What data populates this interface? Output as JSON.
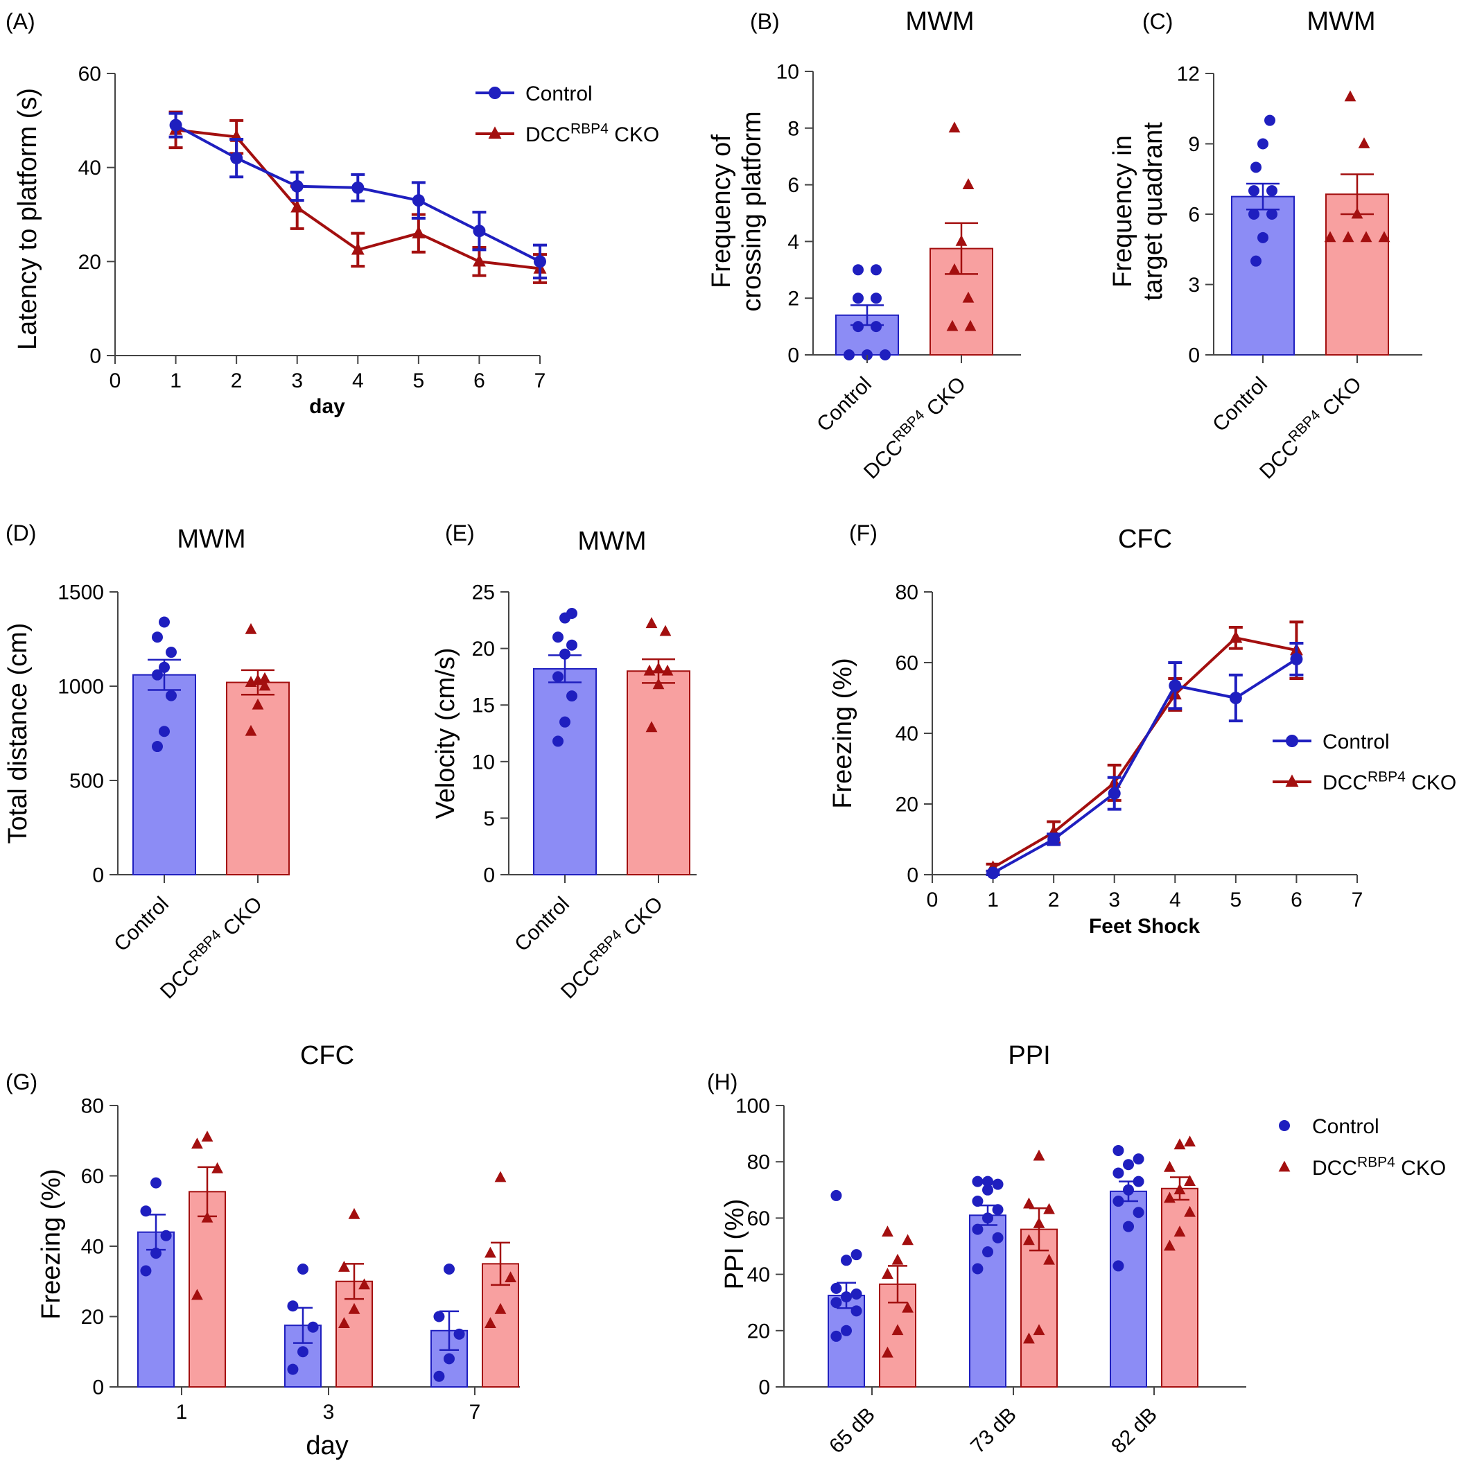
{
  "colors": {
    "control": "#1f1fbf",
    "cko": "#a30f0f",
    "control_fill": "#8c8cf5",
    "cko_fill": "#f8a0a0"
  },
  "legend": {
    "control": "Control",
    "cko_base": "DCC",
    "cko_sup": "RBP4",
    "cko_suffix": " CKO"
  },
  "chart_data": [
    {
      "id": "A",
      "panel_label": "(A)",
      "type": "line",
      "title": "",
      "xlabel": "day",
      "ylabel": "Latency to platform (s)",
      "xlim": [
        0,
        7
      ],
      "ylim": [
        0,
        60
      ],
      "x_ticks": [
        "0",
        "1",
        "2",
        "3",
        "4",
        "5",
        "6",
        "7"
      ],
      "y_ticks": [
        "0",
        "20",
        "40",
        "60"
      ],
      "legend_position": "top-right",
      "series": [
        {
          "name": "Control",
          "x": [
            1,
            2,
            3,
            4,
            5,
            6,
            7
          ],
          "y": [
            49,
            42,
            36,
            35.7,
            33,
            26.5,
            20
          ],
          "err": [
            2.5,
            4,
            3,
            2.8,
            3.8,
            4,
            3.5
          ]
        },
        {
          "name": "DCC RBP4 CKO",
          "x": [
            1,
            2,
            3,
            4,
            5,
            6,
            7
          ],
          "y": [
            48,
            46.5,
            31.5,
            22.5,
            26,
            20,
            18.5
          ],
          "err": [
            3.8,
            3.5,
            4.5,
            3.5,
            4,
            3,
            3
          ]
        }
      ]
    },
    {
      "id": "B",
      "panel_label": "(B)",
      "type": "bar",
      "title": "MWM",
      "ylabel_lines": [
        "Frequency of",
        "crossing platform"
      ],
      "ylim": [
        0,
        10
      ],
      "y_ticks": [
        "0",
        "2",
        "4",
        "6",
        "8",
        "10"
      ],
      "categories": [
        "Control",
        "DCC RBP4 CKO"
      ],
      "series": [
        {
          "name": "Control",
          "mean": 1.4,
          "sem": 0.35,
          "points": [
            0,
            0,
            0,
            1,
            1,
            2,
            2,
            3,
            3
          ]
        },
        {
          "name": "DCC RBP4 CKO",
          "mean": 3.75,
          "sem": 0.9,
          "points": [
            1,
            1,
            2,
            3,
            4,
            6,
            8
          ]
        }
      ]
    },
    {
      "id": "C",
      "panel_label": "(C)",
      "type": "bar",
      "title": "MWM",
      "ylabel_lines": [
        "Frequency in",
        "target quadrant"
      ],
      "ylim": [
        0,
        12
      ],
      "y_ticks": [
        "0",
        "3",
        "6",
        "9",
        "12"
      ],
      "categories": [
        "Control",
        "DCC RBP4 CKO"
      ],
      "series": [
        {
          "name": "Control",
          "mean": 6.75,
          "sem": 0.55,
          "points": [
            4,
            5,
            6,
            6,
            7,
            7,
            8,
            9,
            10
          ]
        },
        {
          "name": "DCC RBP4 CKO",
          "mean": 6.85,
          "sem": 0.85,
          "points": [
            5,
            5,
            5,
            5,
            6,
            9,
            11
          ]
        }
      ]
    },
    {
      "id": "D",
      "panel_label": "(D)",
      "type": "bar",
      "title": "MWM",
      "ylabel_lines": [
        "Total distance (cm)"
      ],
      "ylim": [
        0,
        1500
      ],
      "y_ticks": [
        "0",
        "500",
        "1000",
        "1500"
      ],
      "categories": [
        "Control",
        "DCC RBP4 CKO"
      ],
      "series": [
        {
          "name": "Control",
          "mean": 1060,
          "sem": 80,
          "points": [
            680,
            760,
            950,
            1060,
            1100,
            1180,
            1260,
            1340
          ]
        },
        {
          "name": "DCC RBP4 CKO",
          "mean": 1020,
          "sem": 65,
          "points": [
            760,
            900,
            1000,
            1020,
            1030,
            1040,
            1300
          ]
        }
      ]
    },
    {
      "id": "E",
      "panel_label": "(E)",
      "type": "bar",
      "title": "MWM",
      "ylabel_lines": [
        "Velocity (cm/s)"
      ],
      "ylim": [
        0,
        25
      ],
      "y_ticks": [
        "0",
        "5",
        "10",
        "15",
        "20",
        "25"
      ],
      "categories": [
        "Control",
        "DCC RBP4 CKO"
      ],
      "series": [
        {
          "name": "Control",
          "mean": 18.2,
          "sem": 1.2,
          "points": [
            11.8,
            13.5,
            15.8,
            17.5,
            19.5,
            20.3,
            21,
            22.7,
            23.1
          ]
        },
        {
          "name": "DCC RBP4 CKO",
          "mean": 18,
          "sem": 1.05,
          "points": [
            13,
            16.8,
            18,
            18,
            18.2,
            21.5,
            22.2
          ]
        }
      ]
    },
    {
      "id": "F",
      "panel_label": "(F)",
      "type": "line",
      "title": "CFC",
      "xlabel": "Feet Shock",
      "ylabel": "Freezing (%)",
      "xlim": [
        0,
        7
      ],
      "ylim": [
        0,
        80
      ],
      "x_ticks": [
        "0",
        "1",
        "2",
        "3",
        "4",
        "5",
        "6",
        "7"
      ],
      "y_ticks": [
        "0",
        "20",
        "40",
        "60",
        "80"
      ],
      "legend_position": "right",
      "series": [
        {
          "name": "Control",
          "x": [
            1,
            2,
            3,
            4,
            5,
            6
          ],
          "y": [
            0.5,
            10,
            23,
            53.5,
            50,
            61
          ],
          "err": [
            0.5,
            1.5,
            4.5,
            6.5,
            6.5,
            4.5
          ]
        },
        {
          "name": "DCC RBP4 CKO",
          "x": [
            1,
            2,
            3,
            4,
            5,
            6
          ],
          "y": [
            2,
            12,
            26,
            51,
            67,
            63.5
          ],
          "err": [
            1,
            3,
            5,
            4.5,
            3,
            8
          ]
        }
      ]
    },
    {
      "id": "G",
      "panel_label": "(G)",
      "type": "bar",
      "title": "CFC",
      "xlabel": "day",
      "ylabel_lines": [
        "Freezing (%)"
      ],
      "ylim": [
        0,
        80
      ],
      "y_ticks": [
        "0",
        "20",
        "40",
        "60",
        "80"
      ],
      "categories": [
        "1",
        "3",
        "7"
      ],
      "series": [
        {
          "name": "Control",
          "means": [
            44,
            17.5,
            16
          ],
          "sems": [
            5,
            5,
            5.5
          ],
          "points": [
            [
              33,
              38,
              43,
              50,
              58
            ],
            [
              5,
              10,
              17,
              23,
              33.5
            ],
            [
              3,
              8,
              15,
              20,
              33.5
            ]
          ]
        },
        {
          "name": "DCC RBP4 CKO",
          "means": [
            55.5,
            30,
            35
          ],
          "sems": [
            7,
            5,
            6
          ],
          "points": [
            [
              26,
              48,
              62,
              69,
              71
            ],
            [
              18,
              22,
              29,
              34,
              49
            ],
            [
              18,
              22,
              31,
              38,
              59.5
            ]
          ]
        }
      ]
    },
    {
      "id": "H",
      "panel_label": "(H)",
      "type": "bar",
      "title": "PPI",
      "ylabel_lines": [
        "PPI (%)"
      ],
      "ylim": [
        0,
        100
      ],
      "y_ticks": [
        "0",
        "20",
        "40",
        "60",
        "80",
        "100"
      ],
      "categories": [
        "65 dB",
        "73 dB",
        "82 dB"
      ],
      "legend_position": "top-right",
      "series": [
        {
          "name": "Control",
          "means": [
            32.5,
            61,
            69.5
          ],
          "sems": [
            4.5,
            3.5,
            3.5
          ],
          "points": [
            [
              18,
              20,
              27,
              30,
              32,
              33,
              35,
              45,
              47,
              68
            ],
            [
              42,
              48,
              53,
              56,
              60,
              63,
              66,
              70,
              72,
              73,
              73
            ],
            [
              43,
              57,
              62,
              66,
              70,
              73,
              76,
              79,
              81,
              84
            ]
          ]
        },
        {
          "name": "DCC RBP4 CKO",
          "means": [
            36.5,
            56,
            70.5
          ],
          "sems": [
            6.5,
            7.5,
            4
          ],
          "points": [
            [
              12,
              20,
              28,
              40,
              45,
              52,
              55
            ],
            [
              17,
              20,
              45,
              52,
              58,
              63,
              65,
              82
            ],
            [
              50,
              55,
              62,
              67,
              70,
              73,
              78,
              86,
              87
            ]
          ]
        }
      ]
    }
  ]
}
